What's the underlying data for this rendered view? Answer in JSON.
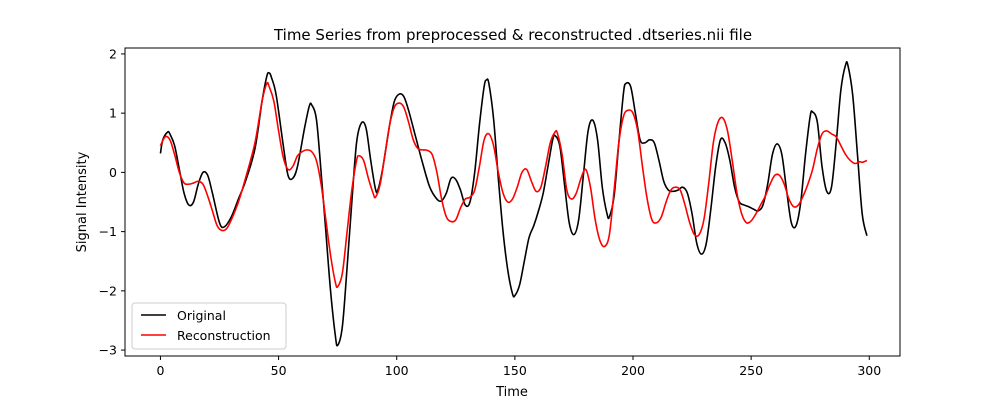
{
  "chart_data": {
    "type": "line",
    "title": "Time Series from preprocessed & reconstructed .dtseries.nii file",
    "xlabel": "Time",
    "ylabel": "Signal Intensity",
    "xlim": [
      -15,
      313
    ],
    "ylim": [
      -3.1,
      2.1
    ],
    "xticks": [
      0,
      50,
      100,
      150,
      200,
      250,
      300
    ],
    "yticks": [
      -3,
      -2,
      -1,
      0,
      1,
      2
    ],
    "xtick_labels": [
      "0",
      "50",
      "100",
      "150",
      "200",
      "250",
      "300"
    ],
    "ytick_labels": [
      "−3",
      "−2",
      "−1",
      "0",
      "1",
      "2"
    ],
    "grid": false,
    "legend_position": "lower-left",
    "series": [
      {
        "name": "Original",
        "color": "#000000",
        "points": [
          [
            0,
            0.32
          ],
          [
            1,
            0.55
          ],
          [
            3,
            0.68
          ],
          [
            4,
            0.65
          ],
          [
            6,
            0.45
          ],
          [
            8,
            0.05
          ],
          [
            10,
            -0.35
          ],
          [
            12,
            -0.55
          ],
          [
            14,
            -0.5
          ],
          [
            16,
            -0.2
          ],
          [
            18,
            0.0
          ],
          [
            20,
            -0.05
          ],
          [
            22,
            -0.35
          ],
          [
            25,
            -0.85
          ],
          [
            27,
            -0.92
          ],
          [
            30,
            -0.75
          ],
          [
            33,
            -0.45
          ],
          [
            36,
            -0.15
          ],
          [
            40,
            0.4
          ],
          [
            43,
            1.2
          ],
          [
            45,
            1.62
          ],
          [
            46,
            1.68
          ],
          [
            47,
            1.6
          ],
          [
            49,
            1.3
          ],
          [
            52,
            0.45
          ],
          [
            54,
            -0.05
          ],
          [
            56,
            -0.1
          ],
          [
            58,
            0.1
          ],
          [
            61,
            0.75
          ],
          [
            63,
            1.12
          ],
          [
            64,
            1.14
          ],
          [
            66,
            0.9
          ],
          [
            68,
            0.0
          ],
          [
            70,
            -1.0
          ],
          [
            72,
            -2.0
          ],
          [
            74,
            -2.75
          ],
          [
            75,
            -2.92
          ],
          [
            77,
            -2.6
          ],
          [
            79,
            -1.6
          ],
          [
            81,
            -0.5
          ],
          [
            83,
            0.5
          ],
          [
            85,
            0.83
          ],
          [
            87,
            0.75
          ],
          [
            89,
            0.2
          ],
          [
            91,
            -0.28
          ],
          [
            92,
            -0.3
          ],
          [
            94,
            0.05
          ],
          [
            97,
            0.8
          ],
          [
            99,
            1.2
          ],
          [
            101,
            1.32
          ],
          [
            103,
            1.28
          ],
          [
            105,
            1.05
          ],
          [
            108,
            0.6
          ],
          [
            111,
            0.15
          ],
          [
            114,
            -0.25
          ],
          [
            117,
            -0.45
          ],
          [
            119,
            -0.48
          ],
          [
            121,
            -0.35
          ],
          [
            123,
            -0.1
          ],
          [
            125,
            -0.12
          ],
          [
            127,
            -0.3
          ],
          [
            129,
            -0.55
          ],
          [
            131,
            -0.5
          ],
          [
            133,
            0.0
          ],
          [
            135,
            0.8
          ],
          [
            137,
            1.45
          ],
          [
            138,
            1.56
          ],
          [
            139,
            1.5
          ],
          [
            141,
            0.9
          ],
          [
            143,
            -0.1
          ],
          [
            145,
            -1.0
          ],
          [
            147,
            -1.65
          ],
          [
            149,
            -2.05
          ],
          [
            150,
            -2.08
          ],
          [
            152,
            -1.9
          ],
          [
            154,
            -1.5
          ],
          [
            156,
            -1.1
          ],
          [
            158,
            -0.9
          ],
          [
            160,
            -0.65
          ],
          [
            162,
            -0.35
          ],
          [
            164,
            0.1
          ],
          [
            166,
            0.55
          ],
          [
            167,
            0.62
          ],
          [
            169,
            0.45
          ],
          [
            171,
            -0.2
          ],
          [
            173,
            -0.85
          ],
          [
            175,
            -1.05
          ],
          [
            177,
            -0.8
          ],
          [
            179,
            -0.05
          ],
          [
            181,
            0.7
          ],
          [
            183,
            0.88
          ],
          [
            185,
            0.55
          ],
          [
            187,
            -0.25
          ],
          [
            189,
            -0.7
          ],
          [
            190,
            -0.75
          ],
          [
            192,
            -0.4
          ],
          [
            194,
            0.5
          ],
          [
            196,
            1.35
          ],
          [
            197,
            1.5
          ],
          [
            199,
            1.45
          ],
          [
            201,
            1.0
          ],
          [
            203,
            0.55
          ],
          [
            205,
            0.5
          ],
          [
            207,
            0.55
          ],
          [
            209,
            0.5
          ],
          [
            211,
            0.2
          ],
          [
            213,
            -0.15
          ],
          [
            215,
            -0.3
          ],
          [
            217,
            -0.32
          ],
          [
            219,
            -0.3
          ],
          [
            221,
            -0.25
          ],
          [
            223,
            -0.35
          ],
          [
            225,
            -0.7
          ],
          [
            227,
            -1.2
          ],
          [
            229,
            -1.38
          ],
          [
            231,
            -1.2
          ],
          [
            233,
            -0.6
          ],
          [
            235,
            0.1
          ],
          [
            237,
            0.55
          ],
          [
            239,
            0.5
          ],
          [
            241,
            0.2
          ],
          [
            243,
            -0.25
          ],
          [
            245,
            -0.5
          ],
          [
            247,
            -0.55
          ],
          [
            249,
            -0.58
          ],
          [
            251,
            -0.62
          ],
          [
            253,
            -0.65
          ],
          [
            255,
            -0.55
          ],
          [
            257,
            -0.2
          ],
          [
            259,
            0.3
          ],
          [
            261,
            0.48
          ],
          [
            263,
            0.3
          ],
          [
            265,
            -0.3
          ],
          [
            267,
            -0.85
          ],
          [
            269,
            -0.9
          ],
          [
            271,
            -0.5
          ],
          [
            273,
            0.3
          ],
          [
            275,
            0.95
          ],
          [
            276,
            1.02
          ],
          [
            278,
            0.85
          ],
          [
            280,
            0.1
          ],
          [
            282,
            -0.32
          ],
          [
            284,
            -0.25
          ],
          [
            286,
            0.5
          ],
          [
            288,
            1.4
          ],
          [
            290,
            1.82
          ],
          [
            291,
            1.8
          ],
          [
            293,
            1.3
          ],
          [
            295,
            0.3
          ],
          [
            297,
            -0.7
          ],
          [
            299,
            -1.07
          ]
        ]
      },
      {
        "name": "Reconstruction",
        "color": "#ff0000",
        "points": [
          [
            0,
            0.45
          ],
          [
            2,
            0.6
          ],
          [
            4,
            0.55
          ],
          [
            6,
            0.3
          ],
          [
            8,
            0.0
          ],
          [
            10,
            -0.18
          ],
          [
            12,
            -0.2
          ],
          [
            14,
            -0.18
          ],
          [
            16,
            -0.15
          ],
          [
            18,
            -0.2
          ],
          [
            20,
            -0.4
          ],
          [
            22,
            -0.65
          ],
          [
            24,
            -0.9
          ],
          [
            26,
            -0.98
          ],
          [
            28,
            -0.95
          ],
          [
            30,
            -0.8
          ],
          [
            33,
            -0.5
          ],
          [
            36,
            -0.1
          ],
          [
            40,
            0.5
          ],
          [
            43,
            1.2
          ],
          [
            45,
            1.5
          ],
          [
            46,
            1.45
          ],
          [
            48,
            1.2
          ],
          [
            50,
            0.7
          ],
          [
            52,
            0.25
          ],
          [
            54,
            0.05
          ],
          [
            56,
            0.1
          ],
          [
            58,
            0.28
          ],
          [
            60,
            0.35
          ],
          [
            62,
            0.38
          ],
          [
            64,
            0.35
          ],
          [
            66,
            0.2
          ],
          [
            68,
            -0.2
          ],
          [
            70,
            -0.8
          ],
          [
            72,
            -1.4
          ],
          [
            74,
            -1.85
          ],
          [
            75,
            -1.93
          ],
          [
            77,
            -1.7
          ],
          [
            79,
            -1.0
          ],
          [
            81,
            -0.3
          ],
          [
            83,
            0.2
          ],
          [
            84,
            0.28
          ],
          [
            86,
            0.2
          ],
          [
            88,
            -0.1
          ],
          [
            90,
            -0.35
          ],
          [
            91,
            -0.42
          ],
          [
            93,
            -0.2
          ],
          [
            95,
            0.3
          ],
          [
            97,
            0.8
          ],
          [
            99,
            1.1
          ],
          [
            101,
            1.17
          ],
          [
            103,
            1.1
          ],
          [
            105,
            0.85
          ],
          [
            107,
            0.55
          ],
          [
            109,
            0.4
          ],
          [
            111,
            0.38
          ],
          [
            113,
            0.37
          ],
          [
            115,
            0.3
          ],
          [
            117,
            0.0
          ],
          [
            119,
            -0.45
          ],
          [
            121,
            -0.75
          ],
          [
            123,
            -0.83
          ],
          [
            125,
            -0.8
          ],
          [
            127,
            -0.6
          ],
          [
            129,
            -0.45
          ],
          [
            131,
            -0.42
          ],
          [
            133,
            -0.3
          ],
          [
            135,
            0.1
          ],
          [
            137,
            0.55
          ],
          [
            139,
            0.65
          ],
          [
            141,
            0.45
          ],
          [
            143,
            0.0
          ],
          [
            145,
            -0.35
          ],
          [
            147,
            -0.5
          ],
          [
            149,
            -0.45
          ],
          [
            151,
            -0.25
          ],
          [
            153,
            0.0
          ],
          [
            155,
            0.05
          ],
          [
            157,
            -0.15
          ],
          [
            159,
            -0.32
          ],
          [
            161,
            -0.25
          ],
          [
            163,
            0.1
          ],
          [
            165,
            0.5
          ],
          [
            167,
            0.68
          ],
          [
            168,
            0.66
          ],
          [
            170,
            0.3
          ],
          [
            172,
            -0.3
          ],
          [
            174,
            -0.45
          ],
          [
            176,
            -0.35
          ],
          [
            178,
            -0.1
          ],
          [
            180,
            0.05
          ],
          [
            182,
            -0.25
          ],
          [
            184,
            -0.8
          ],
          [
            186,
            -1.15
          ],
          [
            188,
            -1.25
          ],
          [
            190,
            -1.05
          ],
          [
            192,
            -0.3
          ],
          [
            194,
            0.5
          ],
          [
            196,
            0.95
          ],
          [
            198,
            1.05
          ],
          [
            200,
            1.0
          ],
          [
            202,
            0.7
          ],
          [
            204,
            0.1
          ],
          [
            206,
            -0.45
          ],
          [
            208,
            -0.8
          ],
          [
            210,
            -0.85
          ],
          [
            212,
            -0.75
          ],
          [
            214,
            -0.5
          ],
          [
            216,
            -0.3
          ],
          [
            218,
            -0.25
          ],
          [
            220,
            -0.3
          ],
          [
            222,
            -0.55
          ],
          [
            224,
            -0.85
          ],
          [
            226,
            -1.05
          ],
          [
            228,
            -1.05
          ],
          [
            230,
            -0.8
          ],
          [
            232,
            -0.2
          ],
          [
            234,
            0.5
          ],
          [
            236,
            0.85
          ],
          [
            238,
            0.92
          ],
          [
            240,
            0.7
          ],
          [
            242,
            0.2
          ],
          [
            244,
            -0.35
          ],
          [
            246,
            -0.7
          ],
          [
            248,
            -0.85
          ],
          [
            250,
            -0.82
          ],
          [
            252,
            -0.7
          ],
          [
            254,
            -0.55
          ],
          [
            256,
            -0.4
          ],
          [
            258,
            -0.2
          ],
          [
            260,
            -0.05
          ],
          [
            262,
            -0.05
          ],
          [
            264,
            -0.2
          ],
          [
            266,
            -0.45
          ],
          [
            268,
            -0.58
          ],
          [
            270,
            -0.55
          ],
          [
            272,
            -0.4
          ],
          [
            274,
            -0.2
          ],
          [
            276,
            0.05
          ],
          [
            278,
            0.4
          ],
          [
            280,
            0.65
          ],
          [
            282,
            0.7
          ],
          [
            284,
            0.65
          ],
          [
            286,
            0.6
          ],
          [
            288,
            0.45
          ],
          [
            290,
            0.3
          ],
          [
            292,
            0.2
          ],
          [
            294,
            0.15
          ],
          [
            296,
            0.18
          ],
          [
            297,
            0.17
          ],
          [
            299,
            0.2
          ]
        ]
      }
    ]
  }
}
